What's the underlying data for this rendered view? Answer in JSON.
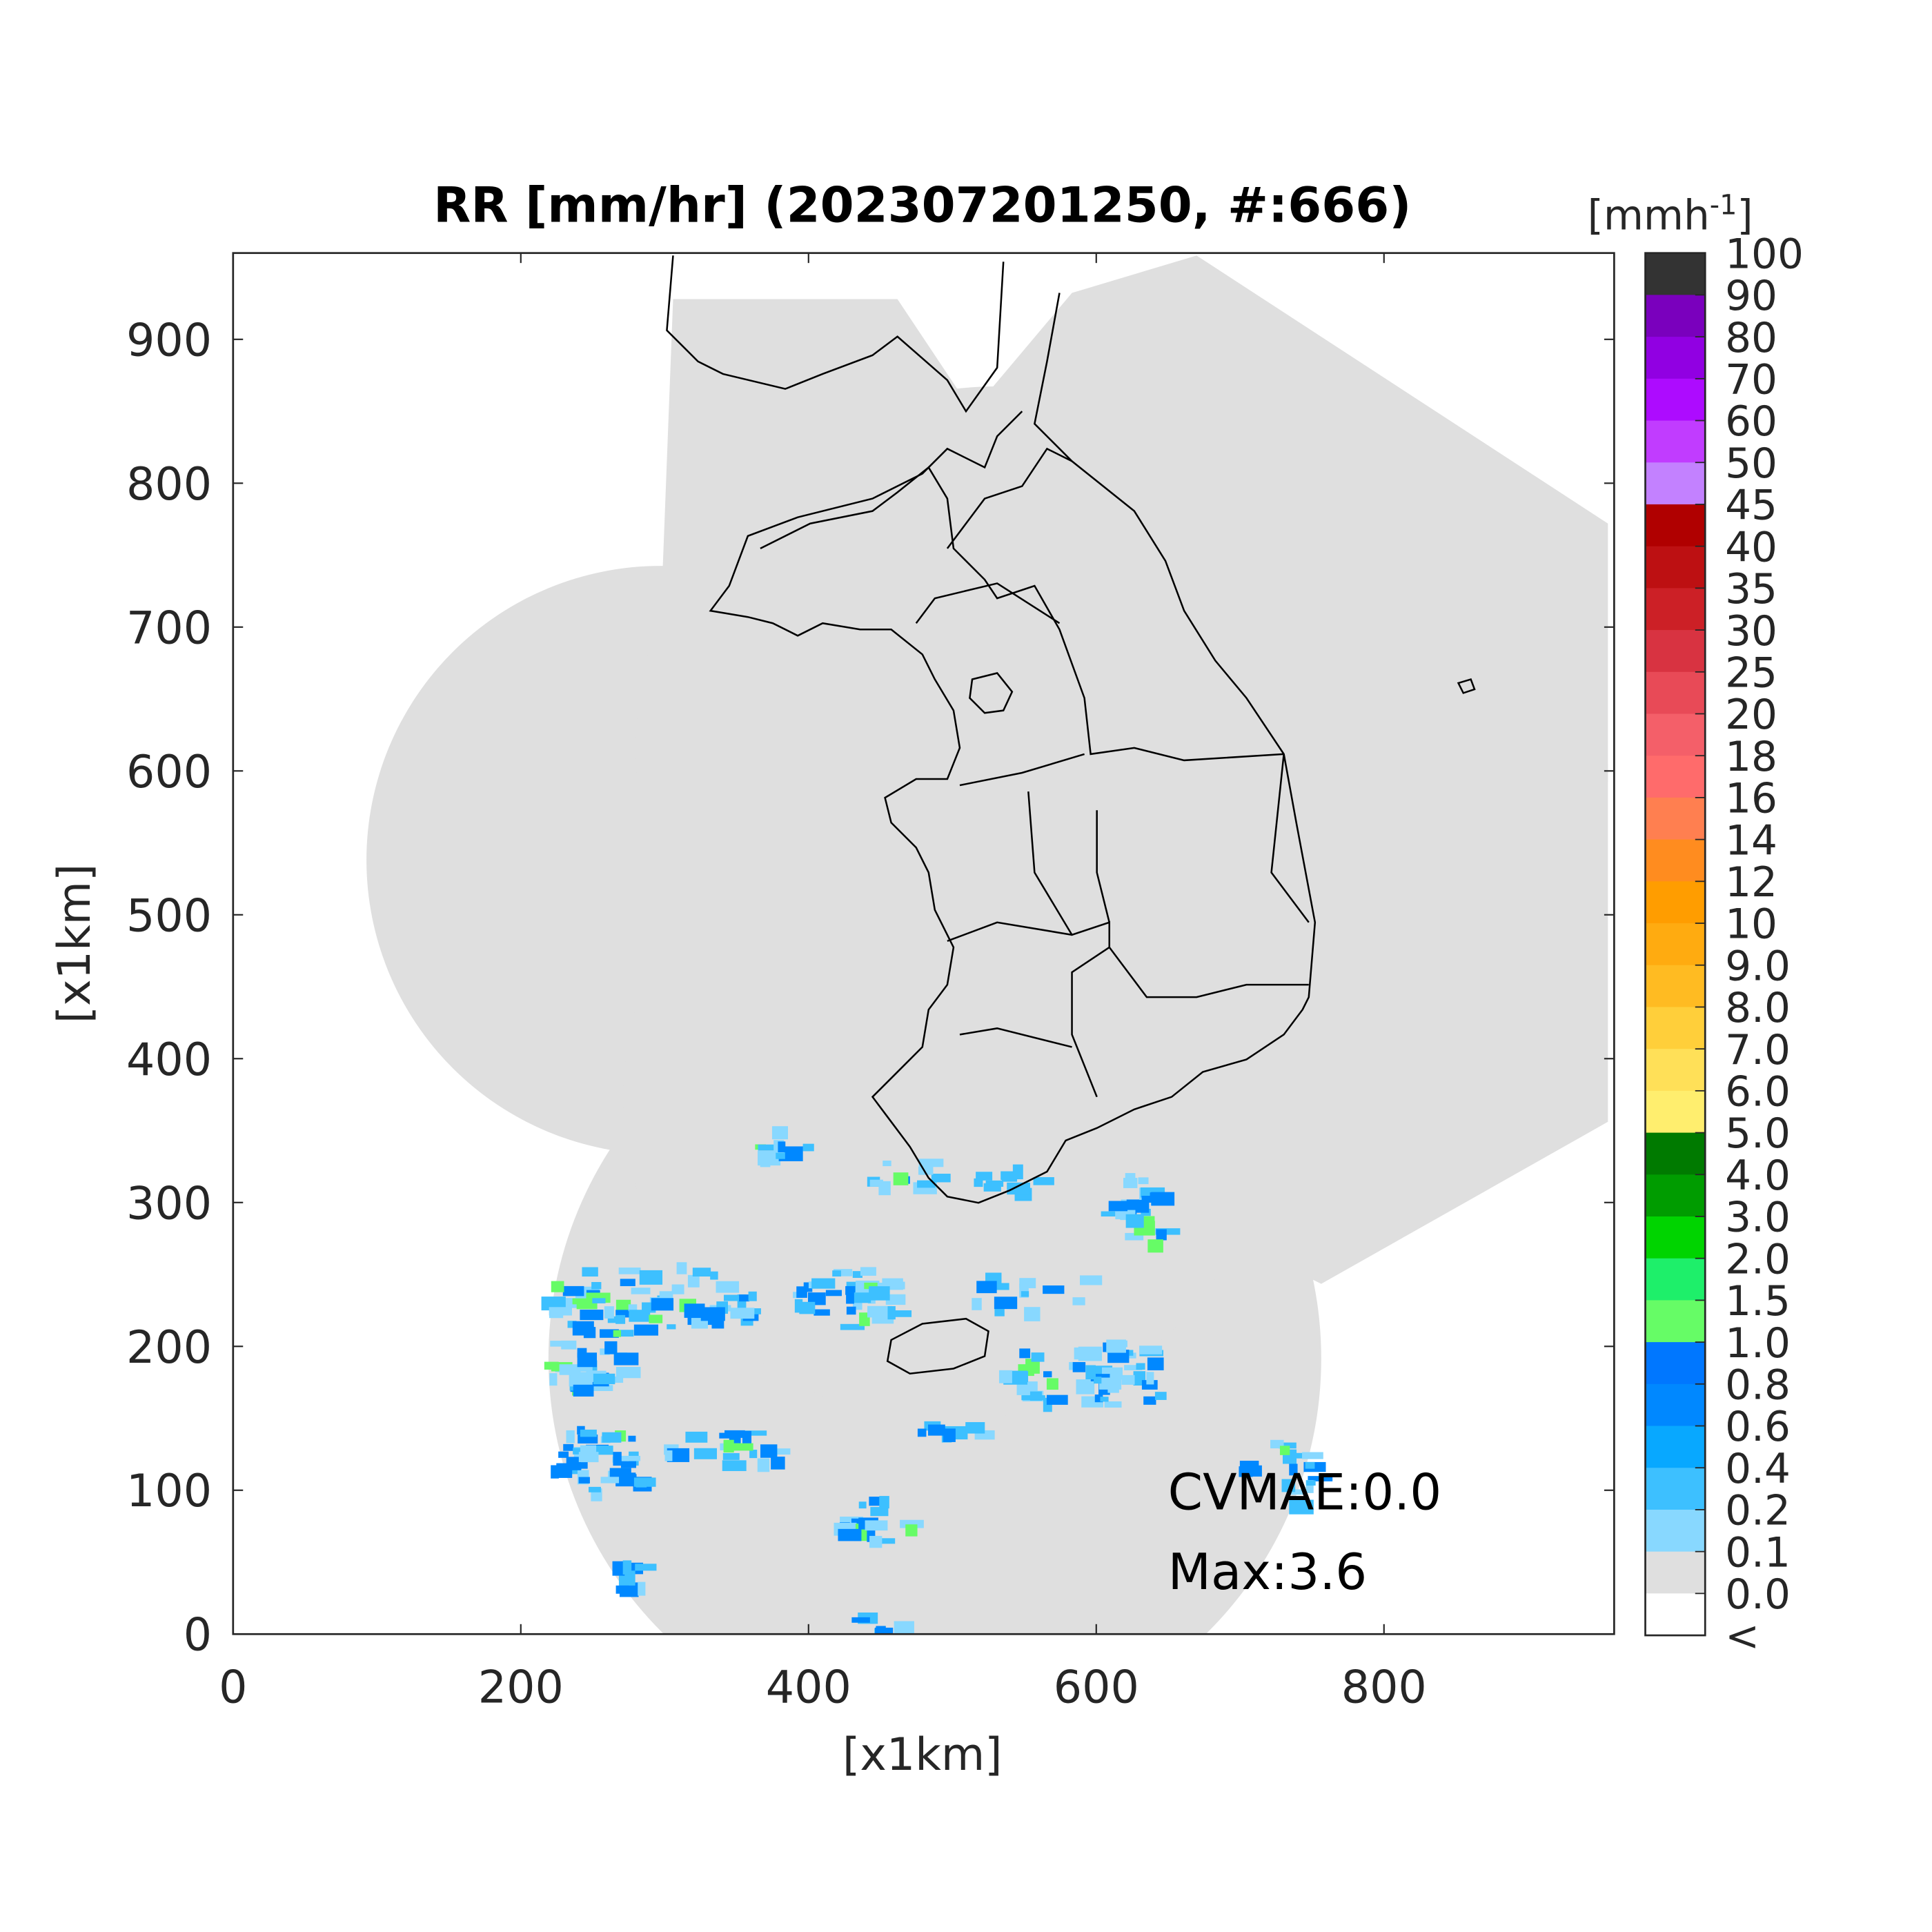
{
  "chart_data": {
    "type": "heatmap",
    "title": "RR [mm/hr] (202307201250, #:666)",
    "xlabel": "[x1km]",
    "ylabel": "[x1km]",
    "xlim": [
      0,
      960
    ],
    "ylim": [
      0,
      960
    ],
    "xticks": [
      "0",
      "200",
      "400",
      "600",
      "800"
    ],
    "yticks": [
      "0",
      "100",
      "200",
      "300",
      "400",
      "500",
      "600",
      "700",
      "800",
      "900"
    ],
    "annotations": [
      "CVMAE:0.0",
      "Max:3.6"
    ],
    "colorbar": {
      "unit_label": "[mmh",
      "unit_sup": "-1",
      "unit_close": "]",
      "labels": [
        "100",
        "90",
        "80",
        "70",
        "60",
        "50",
        "45",
        "40",
        "35",
        "30",
        "25",
        "20",
        "18",
        "16",
        "14",
        "12",
        "10",
        "9.0",
        "8.0",
        "7.0",
        "6.0",
        "5.0",
        "4.0",
        "3.0",
        "2.0",
        "1.5",
        "1.0",
        "0.8",
        "0.6",
        "0.4",
        "0.2",
        "0.1",
        "0.0",
        "<"
      ],
      "colors": [
        "#333333",
        "#7a00bd",
        "#9100e2",
        "#ad0bff",
        "#c13cff",
        "#c381ff",
        "#b00000",
        "#bd1012",
        "#cc2026",
        "#d83341",
        "#e84a57",
        "#f45f69",
        "#ff6b6b",
        "#ff7f50",
        "#ff8c1f",
        "#ff9d00",
        "#ffab10",
        "#ffbb22",
        "#ffcf3a",
        "#ffe058",
        "#ffee6e",
        "#007a00",
        "#009c00",
        "#00d400",
        "#1eef6a",
        "#66fc66",
        "#0077ff",
        "#0088ff",
        "#08a8ff",
        "#3dc0ff",
        "#88d8ff",
        "#dfdfdf",
        "#ffffff"
      ]
    },
    "no_rain_color": "#dfdfdf",
    "rain_color_light": "#88d8ff",
    "rain_color_mid": "#3dc0ff",
    "rain_color_strong": "#0088ff",
    "rain_color_green": "#66fc66"
  }
}
